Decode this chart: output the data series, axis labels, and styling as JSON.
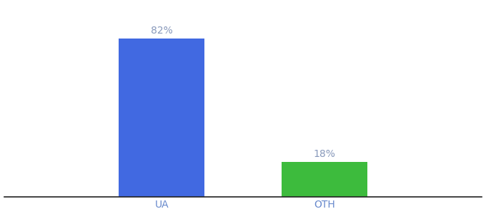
{
  "categories": [
    "UA",
    "OTH"
  ],
  "values": [
    82,
    18
  ],
  "bar_colors": [
    "#4169e1",
    "#3dbb3d"
  ],
  "label_texts": [
    "82%",
    "18%"
  ],
  "background_color": "#ffffff",
  "ylim": [
    0,
    100
  ],
  "bar_width": 0.18,
  "x_positions": [
    0.33,
    0.67
  ],
  "xlim": [
    0.0,
    1.0
  ],
  "label_fontsize": 10,
  "tick_fontsize": 10,
  "tick_color": "#6688cc",
  "label_color": "#8899bb"
}
